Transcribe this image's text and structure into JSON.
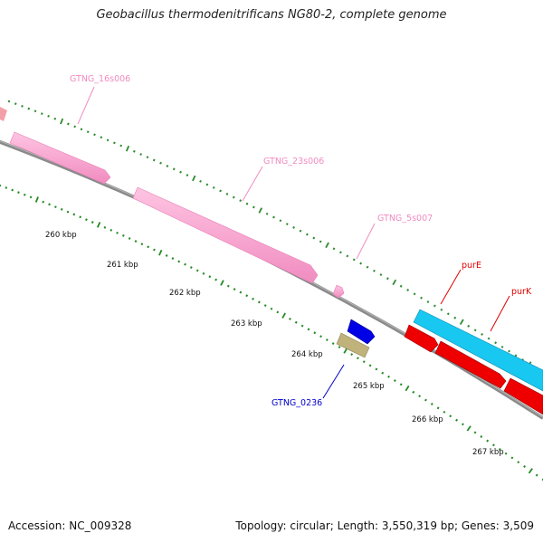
{
  "title": "Geobacillus thermodenitrificans NG80-2, complete genome",
  "footer": {
    "accession": "Accession: NC_009328",
    "summary": "Topology: circular; Length: 3,550,319 bp; Genes: 3,509"
  },
  "colors": {
    "rrna": "#ff9ecf",
    "gene_blue": "#0000e6",
    "gene_olive": "#bfb27a",
    "gene_red": "#ee0000",
    "gene_cyan": "#19c8f0",
    "backbone": "#808080",
    "tick_major": "#228b22",
    "tick_minor": "#2e8b2e"
  },
  "scale_labels": [
    "260 kbp",
    "261 kbp",
    "262 kbp",
    "263 kbp",
    "264 kbp",
    "265 kbp",
    "266 kbp",
    "267 kbp"
  ],
  "features": [
    {
      "name": "GTNG_16s006",
      "color": "#e87fb8"
    },
    {
      "name": "GTNG_23s006",
      "color": "#e87fb8"
    },
    {
      "name": "GTNG_5s007",
      "color": "#e87fb8"
    },
    {
      "name": "GTNG_0236",
      "color": "#0000cc"
    },
    {
      "name": "purE",
      "color": "#e00000"
    },
    {
      "name": "purK",
      "color": "#e00000"
    }
  ]
}
